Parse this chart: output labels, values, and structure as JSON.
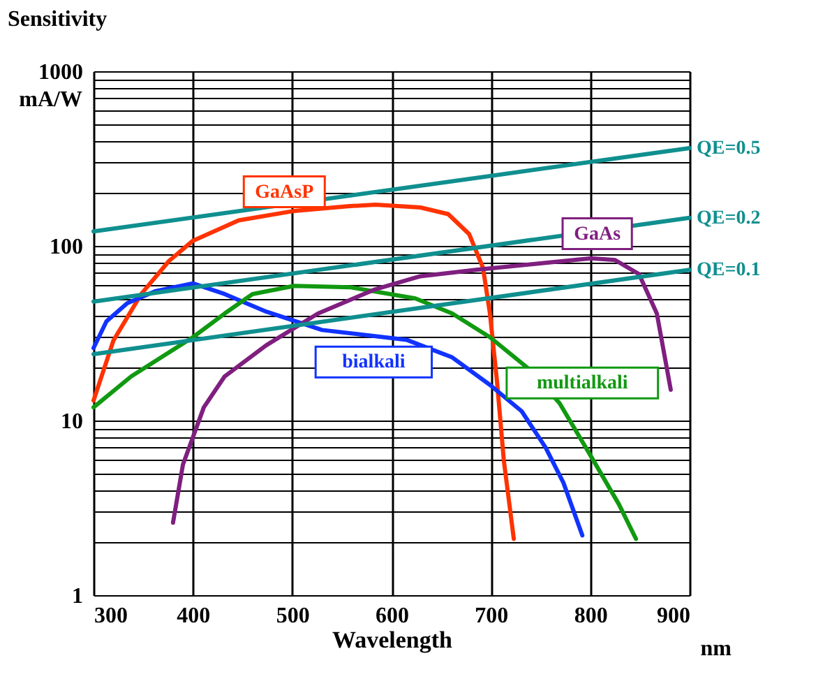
{
  "chart_data": {
    "type": "line",
    "ylabel": "Sensitivity",
    "xlabel": "Wavelength",
    "log": "y",
    "grid": true,
    "marker": "none",
    "line_style": "solid",
    "xlim": [
      300,
      900
    ],
    "xticks": [
      300,
      400,
      500,
      600,
      700,
      800,
      900
    ],
    "ylim": [
      1,
      1000
    ],
    "yticks": [
      1,
      {
        "value": 2,
        "label": null
      },
      {
        "value": 3,
        "label": null
      },
      {
        "value": 4,
        "label": null
      },
      {
        "value": 5,
        "label": null
      },
      {
        "value": 6,
        "label": null
      },
      {
        "value": 7,
        "label": null
      },
      {
        "value": 8,
        "label": null
      },
      {
        "value": 9,
        "label": null
      },
      10,
      {
        "value": 20,
        "label": null
      },
      {
        "value": 30,
        "label": null
      },
      {
        "value": 40,
        "label": null
      },
      {
        "value": 50,
        "label": null
      },
      {
        "value": 60,
        "label": null
      },
      {
        "value": 70,
        "label": null
      },
      {
        "value": 80,
        "label": null
      },
      {
        "value": 90,
        "label": null
      },
      100,
      {
        "value": 200,
        "label": null
      },
      {
        "value": 300,
        "label": null
      },
      {
        "value": 400,
        "label": null
      },
      {
        "value": 500,
        "label": null
      },
      {
        "value": 600,
        "label": null
      },
      {
        "value": 700,
        "label": null
      },
      {
        "value": 800,
        "label": null
      },
      {
        "value": 900,
        "label": null
      },
      1000
    ],
    "series": [
      {
        "name": "GaAsP",
        "color": "#ff3300",
        "x": [
          300,
          320,
          348,
          376,
          400,
          446,
          500,
          558,
          584,
          629,
          657,
          678,
          692,
          699,
          706,
          713,
          723
        ],
        "values": [
          13,
          28.7,
          53,
          82,
          107,
          140,
          158,
          169,
          172,
          166,
          152,
          117,
          75,
          41,
          17,
          5.9,
          2.1
        ]
      },
      {
        "name": "bialkali",
        "color": "#1133ff",
        "x": [
          300,
          313,
          334,
          362,
          400,
          432,
          474,
          530,
          615,
          661,
          699,
          731,
          755,
          773,
          792
        ],
        "values": [
          26,
          37,
          47,
          55,
          61,
          53,
          42,
          33,
          29,
          23,
          16,
          11.3,
          7.0,
          4.4,
          2.2
        ]
      },
      {
        "name": "multialkali",
        "color": "#119911",
        "x": [
          300,
          338,
          400,
          432,
          460,
          502,
          558,
          624,
          661,
          699,
          737,
          769,
          801,
          829,
          846
        ],
        "values": [
          11.9,
          17.9,
          30,
          41,
          53,
          59,
          58,
          50,
          41,
          30,
          20,
          12.6,
          6.2,
          3.3,
          2.1
        ]
      },
      {
        "name": "GaAs",
        "color": "#7f1f7f",
        "x": [
          380,
          390,
          411,
          432,
          474,
          526,
          582,
          629,
          685,
          755,
          801,
          825,
          849,
          867,
          881
        ],
        "values": [
          2.6,
          5.6,
          11.9,
          17.9,
          27,
          41,
          56,
          67,
          73,
          80,
          85,
          83,
          69,
          41,
          15
        ]
      },
      {
        "name": "QE=0.5",
        "color": "#108f8f",
        "x": [
          300,
          900
        ],
        "values": [
          121,
          363
        ]
      },
      {
        "name": "QE=0.2",
        "color": "#108f8f",
        "x": [
          300,
          900
        ],
        "values": [
          48,
          145
        ]
      },
      {
        "name": "QE=0.1",
        "color": "#108f8f",
        "x": [
          300,
          900
        ],
        "values": [
          24,
          73
        ]
      }
    ],
    "annotations": [
      "mA/W",
      "nm"
    ]
  }
}
